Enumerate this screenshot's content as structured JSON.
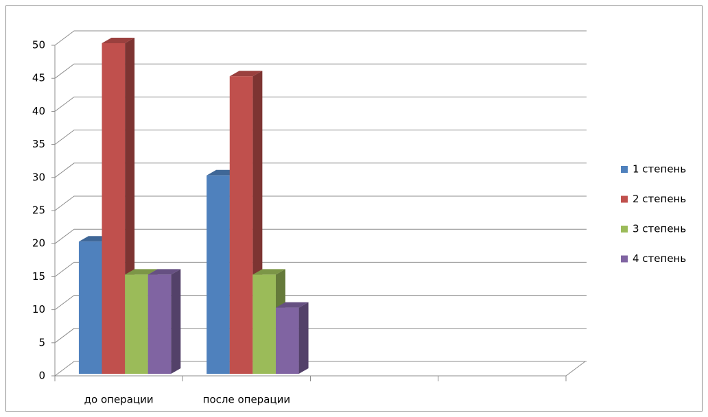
{
  "chart_data": {
    "type": "bar",
    "categories": [
      "до операции",
      "после операции",
      null,
      null
    ],
    "series": [
      {
        "name": "1 степень",
        "color": "#4f81bd",
        "values": [
          20,
          30,
          null,
          null
        ]
      },
      {
        "name": "2 степень",
        "color": "#c0504d",
        "values": [
          50,
          45,
          null,
          null
        ]
      },
      {
        "name": "3 степень",
        "color": "#9bbb59",
        "values": [
          15,
          15,
          null,
          null
        ]
      },
      {
        "name": "4 степень",
        "color": "#8064a2",
        "values": [
          15,
          10,
          null,
          null
        ]
      }
    ],
    "ylim": [
      0,
      50
    ],
    "yticks": [
      0,
      5,
      10,
      15,
      20,
      25,
      30,
      35,
      40,
      45,
      50
    ],
    "grid": true,
    "legend": "right"
  }
}
